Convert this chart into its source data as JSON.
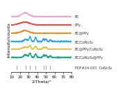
{
  "xlabel": "2-Theta/°",
  "ylabel": "Intensity/counts",
  "xlim": [
    10,
    80
  ],
  "labels": [
    "BC",
    "PPy",
    "BC@PPy",
    "BC/CoNi₂S₄",
    "BC@PPy/CoNi₂S₄",
    "BC/CoNi₂S₄@PPy",
    "PDF#24-033  CoNi₂S₄"
  ],
  "colors": [
    "#e8a8d0",
    "#e84848",
    "#e89030",
    "#30a8e8",
    "#e8c050",
    "#20a888",
    "#808080"
  ],
  "offsets": [
    0.86,
    0.73,
    0.6,
    0.47,
    0.35,
    0.22,
    0.04
  ],
  "reference_peaks": [
    16.4,
    26.7,
    31.4,
    38.2,
    47.2,
    50.0,
    55.1
  ],
  "fontsize_label": 4.5,
  "fontsize_tick": 4.0,
  "fontsize_annot": 3.6,
  "background_color": "#ffffff"
}
